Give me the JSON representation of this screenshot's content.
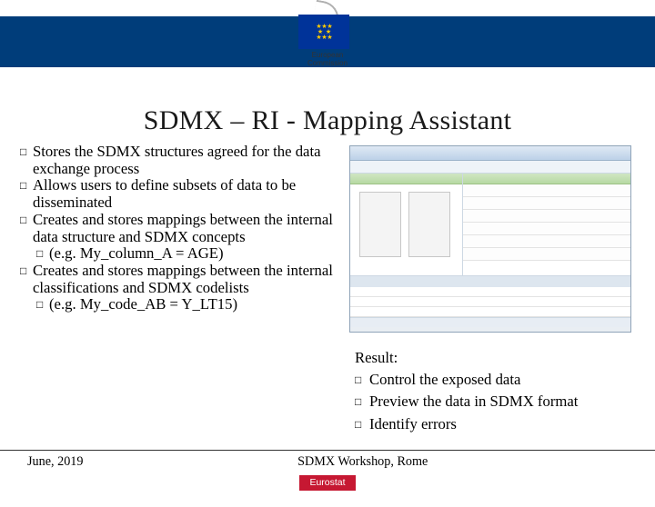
{
  "header": {
    "logo_caption_1": "European",
    "logo_caption_2": "Commission"
  },
  "title": "SDMX – RI - Mapping Assistant",
  "left_bullets": [
    {
      "text": "Stores the SDMX structures agreed for the data exchange process",
      "indent": false
    },
    {
      "text": "Allows users to define subsets of data to be disseminated",
      "indent": false
    },
    {
      "text": "Creates and stores mappings between the internal data structure and SDMX concepts",
      "indent": false
    },
    {
      "text": "(e.g. My_column_A = AGE)",
      "indent": true
    },
    {
      "text": "Creates and stores mappings between the internal classifications and SDMX codelists",
      "indent": false
    },
    {
      "text": "(e.g. My_code_AB = Y_LT15)",
      "indent": true
    }
  ],
  "result": {
    "heading": "Result:",
    "items": [
      "Control the exposed data",
      "Preview the data in SDMX format",
      "Identify errors"
    ]
  },
  "footer": {
    "date": "June, 2019",
    "center": "SDMX Workshop, Rome",
    "badge": "Eurostat"
  },
  "colors": {
    "header_bar": "#003d7a",
    "badge_bg": "#c61832",
    "flag_bg": "#003399",
    "flag_star": "#ffcc00"
  }
}
